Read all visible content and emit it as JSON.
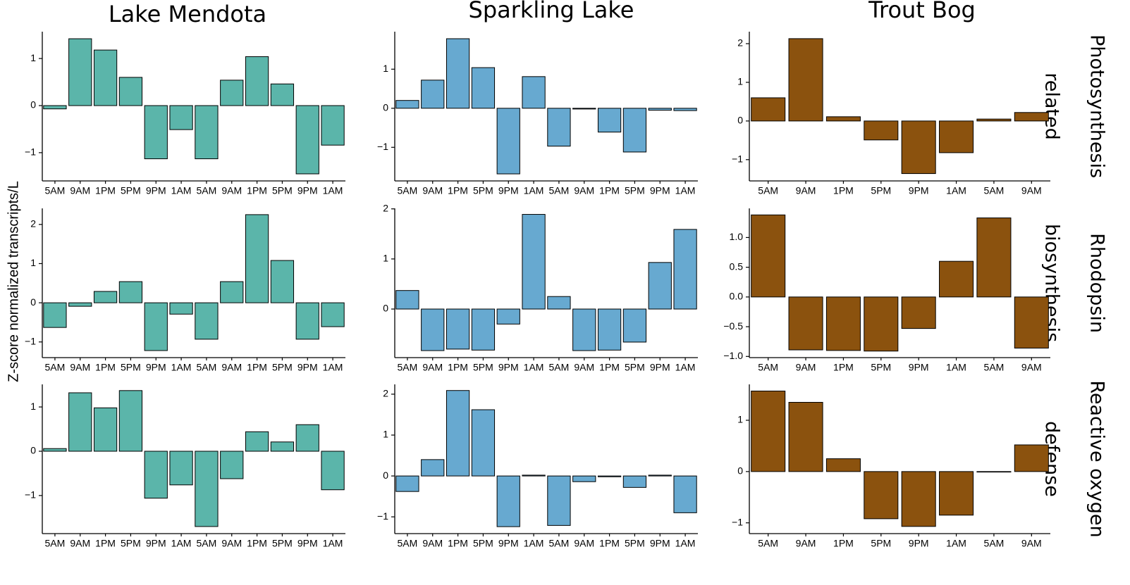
{
  "columns": [
    "Lake Mendota",
    "Sparkling Lake",
    "Trout Bog"
  ],
  "rows": [
    [
      "Photosynthesis",
      "related"
    ],
    [
      "Rhodopsin",
      "biosynthesis"
    ],
    [
      "Reactive oxygen",
      "defense"
    ]
  ],
  "ylabel": "Z-score normalized transcripts/L",
  "chart_data": [
    {
      "type": "bar",
      "color": "#5bb5aa",
      "categories": [
        "5AM",
        "9AM",
        "1PM",
        "5PM",
        "9PM",
        "1AM",
        "5AM",
        "9AM",
        "1PM",
        "5PM",
        "9PM",
        "1AM"
      ],
      "values": [
        -0.07,
        1.42,
        1.18,
        0.6,
        -1.13,
        -0.51,
        -1.13,
        0.54,
        1.04,
        0.46,
        -1.45,
        -0.84
      ],
      "ylim": [
        -1.6,
        1.57
      ],
      "yticks": [
        {
          "value": -1,
          "label": "−1"
        },
        0,
        1
      ]
    },
    {
      "type": "bar",
      "color": "#67a9d0",
      "categories": [
        "5AM",
        "9AM",
        "1PM",
        "5PM",
        "9PM",
        "1AM",
        "5AM",
        "9AM",
        "1PM",
        "5PM",
        "9PM",
        "1AM"
      ],
      "values": [
        0.2,
        0.72,
        1.78,
        1.04,
        -1.68,
        0.81,
        -0.97,
        -0.02,
        -0.61,
        -1.12,
        -0.05,
        -0.06
      ],
      "ylim": [
        -1.86,
        1.96
      ],
      "yticks": [
        {
          "value": -1,
          "label": "−1"
        },
        0,
        1
      ]
    },
    {
      "type": "bar",
      "color": "#8b520e",
      "categories": [
        "5AM",
        "9AM",
        "1PM",
        "5PM",
        "9PM",
        "1AM",
        "5AM",
        "9AM"
      ],
      "values": [
        0.6,
        2.13,
        0.11,
        -0.49,
        -1.36,
        -0.82,
        0.05,
        0.22
      ],
      "ylim": [
        -1.55,
        2.31
      ],
      "yticks": [
        {
          "value": -1,
          "label": "−1"
        },
        0,
        1,
        2
      ]
    },
    {
      "type": "bar",
      "color": "#5bb5aa",
      "categories": [
        "5AM",
        "9AM",
        "1PM",
        "5PM",
        "9PM",
        "1AM",
        "5AM",
        "9AM",
        "1PM",
        "5PM",
        "9PM",
        "1AM"
      ],
      "values": [
        -0.63,
        -0.09,
        0.29,
        0.54,
        -1.22,
        -0.29,
        -0.93,
        0.54,
        2.25,
        1.08,
        -0.93,
        -0.61
      ],
      "ylim": [
        -1.4,
        2.41
      ],
      "yticks": [
        {
          "value": -1,
          "label": "−1"
        },
        0,
        1,
        2
      ]
    },
    {
      "type": "bar",
      "color": "#67a9d0",
      "categories": [
        "5AM",
        "9AM",
        "1PM",
        "5PM",
        "9PM",
        "1AM",
        "5AM",
        "9AM",
        "1PM",
        "5PM",
        "9PM",
        "1AM"
      ],
      "values": [
        0.37,
        -0.83,
        -0.8,
        -0.82,
        -0.3,
        1.89,
        0.25,
        -0.83,
        -0.82,
        -0.66,
        0.93,
        1.59
      ],
      "ylim": [
        -0.97,
        2.01
      ],
      "yticks": [
        0,
        1,
        2
      ]
    },
    {
      "type": "bar",
      "color": "#8b520e",
      "categories": [
        "5AM",
        "9AM",
        "1PM",
        "5PM",
        "9PM",
        "1AM",
        "5AM",
        "9AM"
      ],
      "values": [
        1.38,
        -0.89,
        -0.9,
        -0.91,
        -0.53,
        0.6,
        1.33,
        -0.86
      ],
      "ylim": [
        -1.02,
        1.49
      ],
      "yticks": [
        {
          "value": -1,
          "label": "−1.0"
        },
        {
          "value": -0.5,
          "label": "−0.5"
        },
        {
          "value": 0,
          "label": "0.0"
        },
        {
          "value": 0.5,
          "label": "0.5"
        },
        {
          "value": 1,
          "label": "1.0"
        }
      ]
    },
    {
      "type": "bar",
      "color": "#5bb5aa",
      "categories": [
        "5AM",
        "9AM",
        "1PM",
        "5PM",
        "9PM",
        "1AM",
        "5AM",
        "9AM",
        "1PM",
        "5PM",
        "9PM",
        "1AM"
      ],
      "values": [
        0.06,
        1.32,
        0.98,
        1.37,
        -1.06,
        -0.76,
        -1.7,
        -0.62,
        0.44,
        0.21,
        0.6,
        -0.87
      ],
      "ylim": [
        -1.86,
        1.51
      ],
      "yticks": [
        {
          "value": -1,
          "label": "−1"
        },
        0,
        1
      ]
    },
    {
      "type": "bar",
      "color": "#67a9d0",
      "categories": [
        "5AM",
        "9AM",
        "1PM",
        "5PM",
        "9PM",
        "1AM",
        "5AM",
        "9AM",
        "1PM",
        "5PM",
        "9PM",
        "1AM"
      ],
      "values": [
        -0.38,
        0.4,
        2.09,
        1.62,
        -1.24,
        0.02,
        -1.21,
        -0.14,
        -0.02,
        -0.28,
        0.02,
        -0.9
      ],
      "ylim": [
        -1.41,
        2.24
      ],
      "yticks": [
        {
          "value": -1,
          "label": "−1"
        },
        0,
        1,
        2
      ]
    },
    {
      "type": "bar",
      "color": "#8b520e",
      "categories": [
        "5AM",
        "9AM",
        "1PM",
        "5PM",
        "9PM",
        "1AM",
        "5AM",
        "9AM"
      ],
      "values": [
        1.57,
        1.35,
        0.25,
        -0.92,
        -1.07,
        -0.85,
        -0.01,
        0.52
      ],
      "ylim": [
        -1.21,
        1.7
      ],
      "yticks": [
        {
          "value": -1,
          "label": "−1"
        },
        0,
        1
      ]
    }
  ]
}
